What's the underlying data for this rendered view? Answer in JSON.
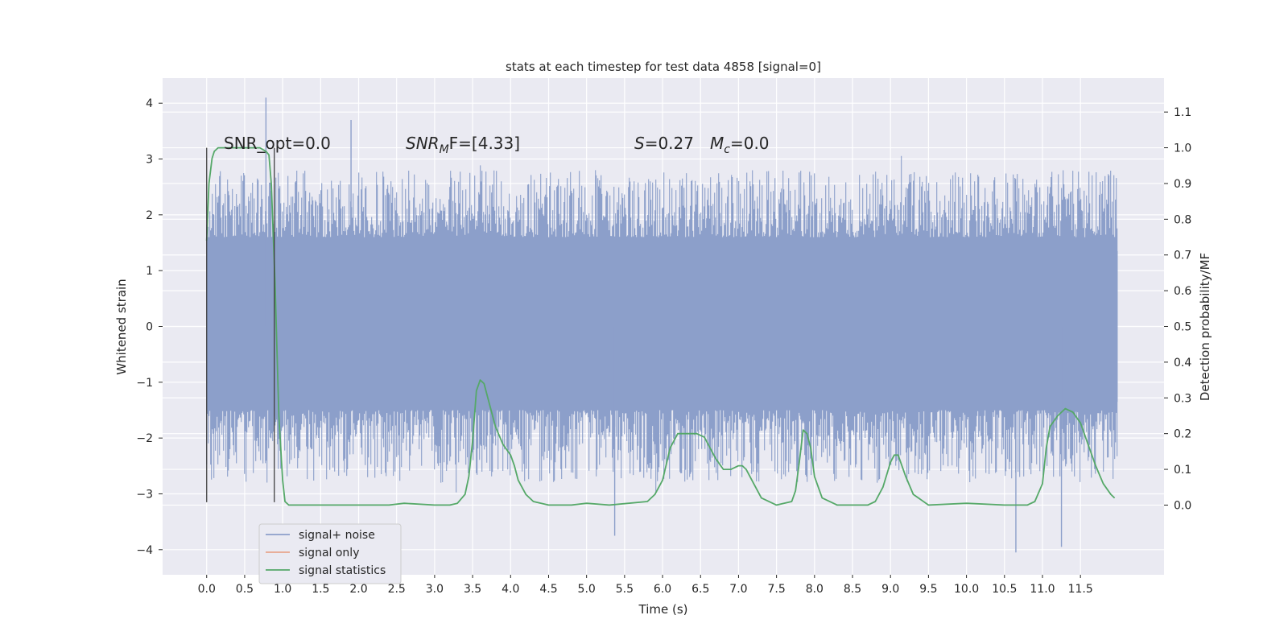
{
  "chart_data": {
    "type": "line",
    "title": "stats at each timestep for test data 4858 [signal=0]",
    "xlabel": "Time (s)",
    "ylabel": "Whitened strain",
    "y2label": "Detection probability/MF",
    "xlim": [
      -0.58,
      12.6
    ],
    "ylim": [
      -4.45,
      4.45
    ],
    "y2lim": [
      -0.195,
      1.195
    ],
    "grid": true,
    "legend_position": "lower-left",
    "x_ticks": [
      0.0,
      0.5,
      1.0,
      1.5,
      2.0,
      2.5,
      3.0,
      3.5,
      4.0,
      4.5,
      5.0,
      5.5,
      6.0,
      6.5,
      7.0,
      7.5,
      8.0,
      8.5,
      9.0,
      9.5,
      10.0,
      10.5,
      11.0,
      11.5
    ],
    "x_tick_labels": [
      "0.0",
      "0.5",
      "1.0",
      "1.5",
      "2.0",
      "2.5",
      "3.0",
      "3.5",
      "4.0",
      "4.5",
      "5.0",
      "5.5",
      "6.0",
      "6.5",
      "7.0",
      "7.5",
      "8.0",
      "8.5",
      "9.0",
      "9.5",
      "10.0",
      "10.5",
      "11.0",
      "11.5"
    ],
    "y_ticks": [
      -4,
      -3,
      -2,
      -1,
      0,
      1,
      2,
      3,
      4
    ],
    "y_tick_labels": [
      "−4",
      "−3",
      "−2",
      "−1",
      "0",
      "1",
      "2",
      "3",
      "4"
    ],
    "y2_ticks": [
      0.0,
      0.1,
      0.2,
      0.3,
      0.4,
      0.5,
      0.6,
      0.7,
      0.8,
      0.9,
      1.0,
      1.1
    ],
    "y2_tick_labels": [
      "0.0",
      "0.1",
      "0.2",
      "0.3",
      "0.4",
      "0.5",
      "0.6",
      "0.7",
      "0.8",
      "0.9",
      "1.0",
      "1.1"
    ],
    "annotations": [
      {
        "text": "SNR_opt=0.0",
        "x": 0.2,
        "y": 3.25
      },
      {
        "text": "SNR_MF=[4.33]",
        "x": 2.6,
        "y": 3.25
      },
      {
        "text": "S=0.27",
        "x": 5.6,
        "y": 3.25
      },
      {
        "text": "M_c=0.0",
        "x": 6.6,
        "y": 3.25
      }
    ],
    "vlines": [
      {
        "x": 0.0,
        "y": [
          -3.15,
          3.2
        ]
      },
      {
        "x": 0.89,
        "y": [
          -3.15,
          3.2
        ]
      }
    ],
    "noise_envelope": {
      "x_range": [
        0.0,
        11.99
      ],
      "core_band": [
        -1.35,
        1.35
      ],
      "typical_upper": [
        1.6,
        2.8
      ],
      "typical_lower": [
        -1.5,
        -2.8
      ],
      "extremes": [
        {
          "x": 0.78,
          "y": 4.1
        },
        {
          "x": 1.9,
          "y": 3.7
        },
        {
          "x": 10.65,
          "y": -4.05
        },
        {
          "x": 11.25,
          "y": -3.95
        },
        {
          "x": 5.37,
          "y": -3.75
        }
      ]
    },
    "series": [
      {
        "name": "signal+ noise",
        "color": "#8c9fca",
        "axis": "left"
      },
      {
        "name": "signal only",
        "color": "#e8a58c",
        "axis": "left"
      },
      {
        "name": "signal statistics",
        "color": "#55a868",
        "axis": "right",
        "x": [
          0.0,
          0.03,
          0.07,
          0.1,
          0.15,
          0.2,
          0.3,
          0.5,
          0.7,
          0.78,
          0.82,
          0.85,
          0.9,
          0.95,
          1.0,
          1.03,
          1.08,
          1.2,
          1.5,
          2.0,
          2.4,
          2.6,
          3.0,
          3.2,
          3.3,
          3.4,
          3.45,
          3.5,
          3.55,
          3.6,
          3.65,
          3.7,
          3.8,
          3.9,
          4.0,
          4.05,
          4.1,
          4.2,
          4.3,
          4.5,
          4.8,
          5.0,
          5.3,
          5.8,
          5.9,
          6.0,
          6.1,
          6.2,
          6.3,
          6.45,
          6.55,
          6.6,
          6.7,
          6.8,
          6.9,
          7.0,
          7.05,
          7.1,
          7.2,
          7.3,
          7.5,
          7.7,
          7.75,
          7.8,
          7.85,
          7.9,
          7.95,
          8.0,
          8.1,
          8.3,
          8.7,
          8.8,
          8.9,
          9.0,
          9.05,
          9.1,
          9.2,
          9.3,
          9.5,
          10.0,
          10.5,
          10.8,
          10.9,
          11.0,
          11.05,
          11.1,
          11.2,
          11.3,
          11.4,
          11.5,
          11.6,
          11.7,
          11.8,
          11.9,
          11.95
        ],
        "y": [
          0.74,
          0.9,
          0.97,
          0.99,
          1.0,
          1.0,
          1.0,
          1.0,
          1.0,
          0.99,
          0.98,
          0.9,
          0.62,
          0.25,
          0.07,
          0.01,
          0.0,
          0.0,
          0.0,
          0.0,
          0.0,
          0.005,
          0.0,
          0.0,
          0.005,
          0.03,
          0.08,
          0.18,
          0.32,
          0.35,
          0.34,
          0.3,
          0.22,
          0.17,
          0.14,
          0.11,
          0.07,
          0.03,
          0.01,
          0.0,
          0.0,
          0.005,
          0.0,
          0.01,
          0.03,
          0.07,
          0.16,
          0.2,
          0.2,
          0.2,
          0.19,
          0.17,
          0.13,
          0.1,
          0.1,
          0.11,
          0.11,
          0.1,
          0.06,
          0.02,
          0.0,
          0.01,
          0.04,
          0.12,
          0.21,
          0.2,
          0.16,
          0.08,
          0.02,
          0.0,
          0.0,
          0.01,
          0.05,
          0.12,
          0.14,
          0.14,
          0.08,
          0.03,
          0.0,
          0.005,
          0.0,
          0.0,
          0.01,
          0.06,
          0.16,
          0.22,
          0.25,
          0.27,
          0.26,
          0.23,
          0.17,
          0.11,
          0.06,
          0.03,
          0.02
        ]
      }
    ]
  }
}
